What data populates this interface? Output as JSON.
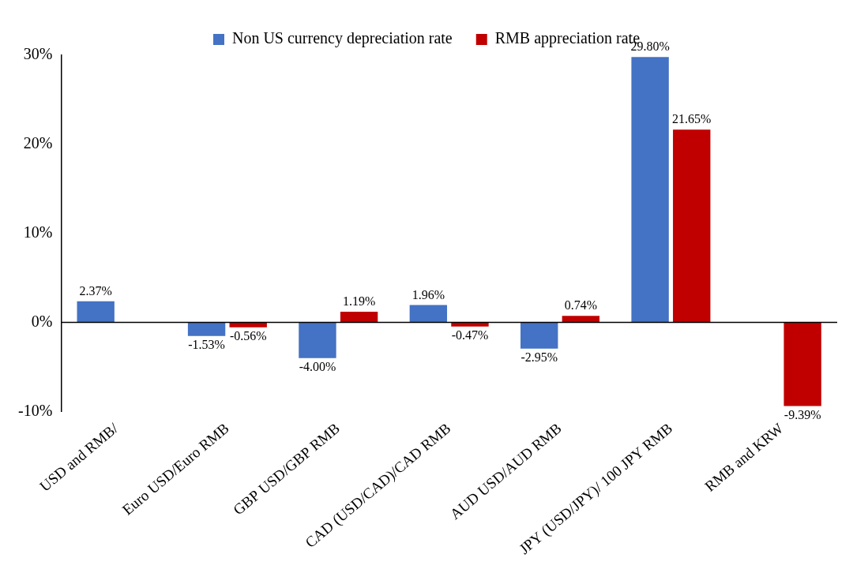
{
  "chart_data": {
    "type": "bar",
    "categories": [
      "USD and RMB/",
      "Euro USD/Euro RMB",
      "GBP USD/GBP RMB",
      "CAD (USD/CAD)/CAD RMB",
      "AUD USD/AUD RMB",
      "JPY (USD/JPY)/ 100 JPY RMB",
      "RMB and KRW"
    ],
    "series": [
      {
        "name": "Non US currency depreciation rate",
        "color": "#4472c4",
        "values": [
          2.37,
          -1.53,
          -4.0,
          1.96,
          -2.95,
          29.8,
          null
        ],
        "value_labels": [
          "2.37%",
          "-1.53%",
          "-4.00%",
          "1.96%",
          "-2.95%",
          "29.80%",
          null
        ]
      },
      {
        "name": "RMB appreciation rate",
        "color": "#c00000",
        "values": [
          null,
          -0.56,
          1.19,
          -0.47,
          0.74,
          21.65,
          -9.39
        ],
        "value_labels": [
          null,
          "-0.56%",
          "1.19%",
          "-0.47%",
          "0.74%",
          "21.65%",
          "-9.39%"
        ]
      }
    ],
    "ylim": [
      -10,
      30
    ],
    "yticks": [
      {
        "value": -10,
        "label": "-10%"
      },
      {
        "value": 0,
        "label": "0%"
      },
      {
        "value": 10,
        "label": "10%"
      },
      {
        "value": 20,
        "label": "20%"
      },
      {
        "value": 30,
        "label": "30%"
      }
    ],
    "grid": false,
    "legend": "top",
    "data_labels": true
  }
}
